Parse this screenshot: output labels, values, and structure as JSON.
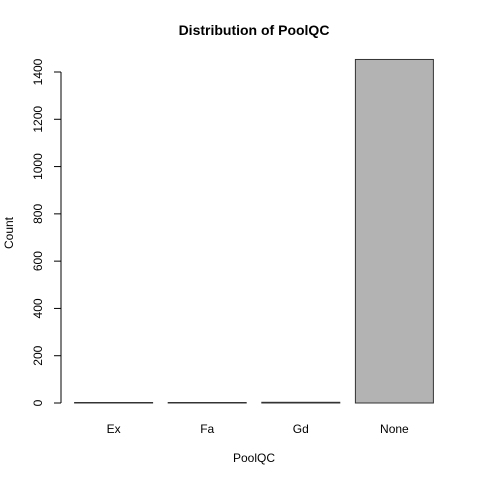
{
  "chart_data": {
    "type": "bar",
    "title": "Distribution of PoolQC",
    "xlabel": "PoolQC",
    "ylabel": "Count",
    "categories": [
      "Ex",
      "Fa",
      "Gd",
      "None"
    ],
    "values": [
      2,
      2,
      3,
      1453
    ],
    "ylim": [
      0,
      1400
    ],
    "yticks": [
      0,
      200,
      400,
      600,
      800,
      1000,
      1200,
      1400
    ],
    "bar_color": "#b3b3b3",
    "bar_border": "#333333",
    "grid": false,
    "legend": "none"
  }
}
